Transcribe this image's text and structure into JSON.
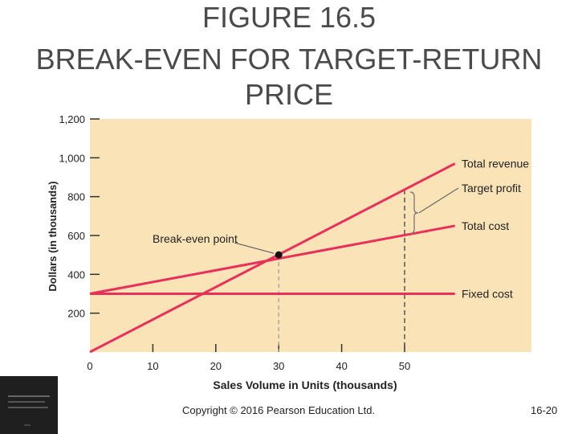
{
  "title_line1": "FIGURE 16.5",
  "title_line2": "BREAK-EVEN FOR TARGET-RETURN PRICE",
  "copyright": "Copyright © 2016 Pearson Education Ltd.",
  "slide_number": "16-20",
  "colors": {
    "plot_background": "#fbe3b8",
    "line": "#e8305a",
    "dashed": "#555555"
  },
  "chart_data": {
    "type": "line",
    "xlabel": "Sales Volume in Units (thousands)",
    "ylabel": "Dollars (in thousands)",
    "xlim": [
      0,
      70
    ],
    "ylim": [
      0,
      1200
    ],
    "x_ticks": [
      0,
      10,
      20,
      30,
      40,
      50
    ],
    "x_tick_labels": [
      "0",
      "10",
      "20",
      "30",
      "40",
      "50"
    ],
    "y_ticks": [
      200,
      400,
      600,
      800,
      1000,
      1200
    ],
    "y_tick_labels": [
      "200",
      "400",
      "600",
      "800",
      "1,000",
      "1,200"
    ],
    "grid": false,
    "series": [
      {
        "name": "Total revenue",
        "points": [
          [
            0,
            0
          ],
          [
            58,
            970
          ]
        ]
      },
      {
        "name": "Total cost",
        "points": [
          [
            0,
            300
          ],
          [
            58,
            650
          ]
        ]
      },
      {
        "name": "Fixed cost",
        "points": [
          [
            0,
            300
          ],
          [
            58,
            300
          ]
        ]
      }
    ],
    "break_even_point": {
      "label": "Break-even point",
      "x": 30,
      "y": 500
    },
    "target_profit": {
      "label": "Target profit",
      "x": 50
    }
  }
}
